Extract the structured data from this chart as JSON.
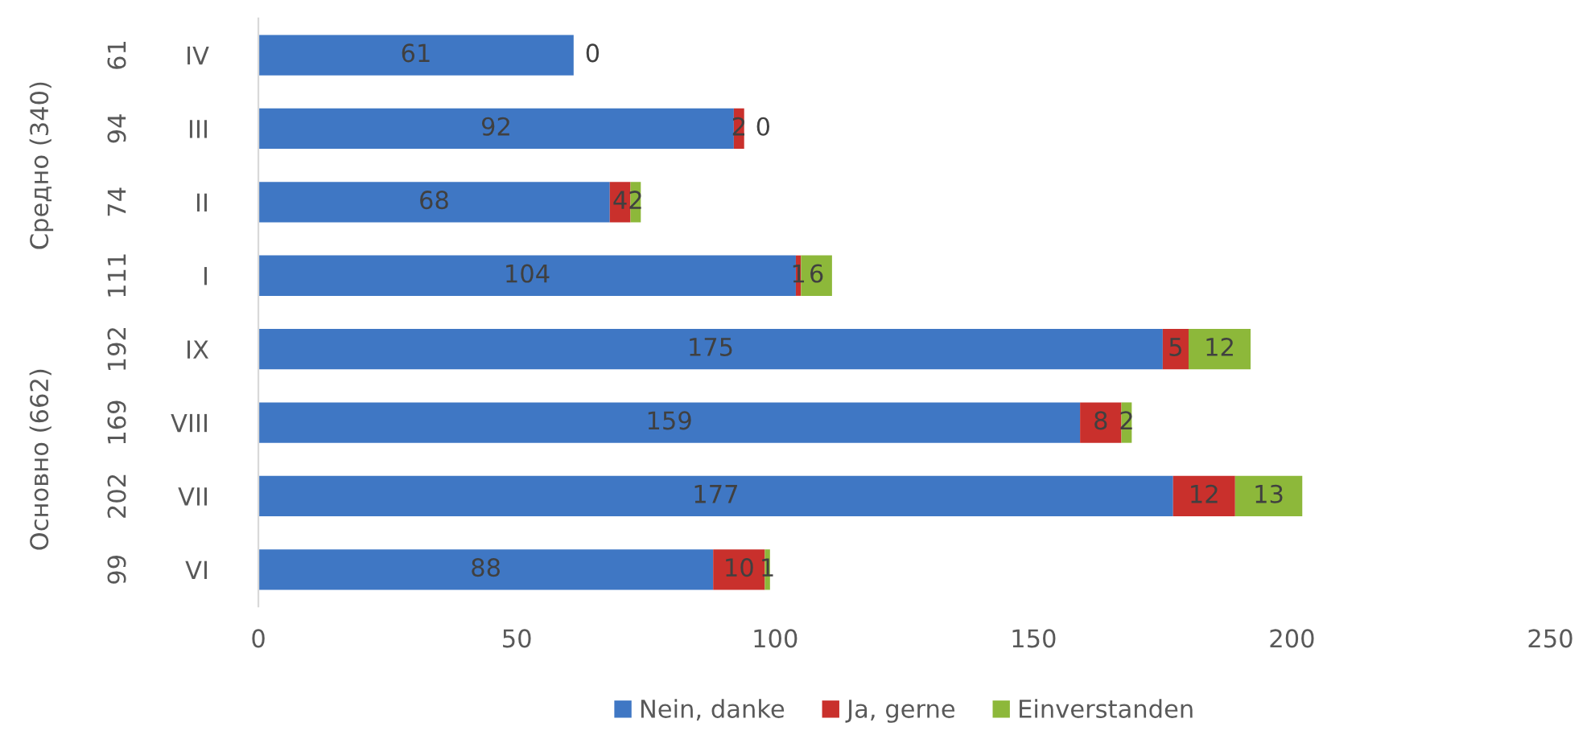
{
  "chart_data": {
    "type": "bar",
    "orientation": "horizontal",
    "stacked": true,
    "grid": false,
    "legend": "bottom",
    "categories": [
      "IV",
      "III",
      "II",
      "I",
      "IX",
      "VIII",
      "VII",
      "VI"
    ],
    "series": [
      {
        "name": "Nein, danke",
        "color": "#3f77c4",
        "values": [
          61,
          92,
          68,
          104,
          175,
          159,
          177,
          88
        ],
        "value_labels": [
          "61",
          "92",
          "68",
          "104",
          "175",
          "159",
          "177",
          "88"
        ]
      },
      {
        "name": "Ja, gerne",
        "color": "#c9302c",
        "values": [
          0,
          2,
          4,
          1,
          5,
          8,
          12,
          10
        ],
        "value_labels": [
          null,
          "2",
          "4",
          "1",
          "5",
          "8",
          "12",
          "10"
        ]
      },
      {
        "name": "Einverstanden",
        "color": "#8db83a",
        "values": [
          0,
          0,
          2,
          6,
          12,
          2,
          13,
          1
        ],
        "value_labels": [
          "0",
          "0",
          "2",
          "6",
          "12",
          "2",
          "13",
          "1"
        ]
      }
    ],
    "xlim": [
      0,
      250
    ],
    "xticks": [
      0,
      50,
      100,
      150,
      200,
      250
    ],
    "annotations": [
      "61",
      "94",
      "74",
      "111",
      "192",
      "169",
      "202",
      "99",
      "Средно (340)",
      "Основно (662)"
    ]
  }
}
